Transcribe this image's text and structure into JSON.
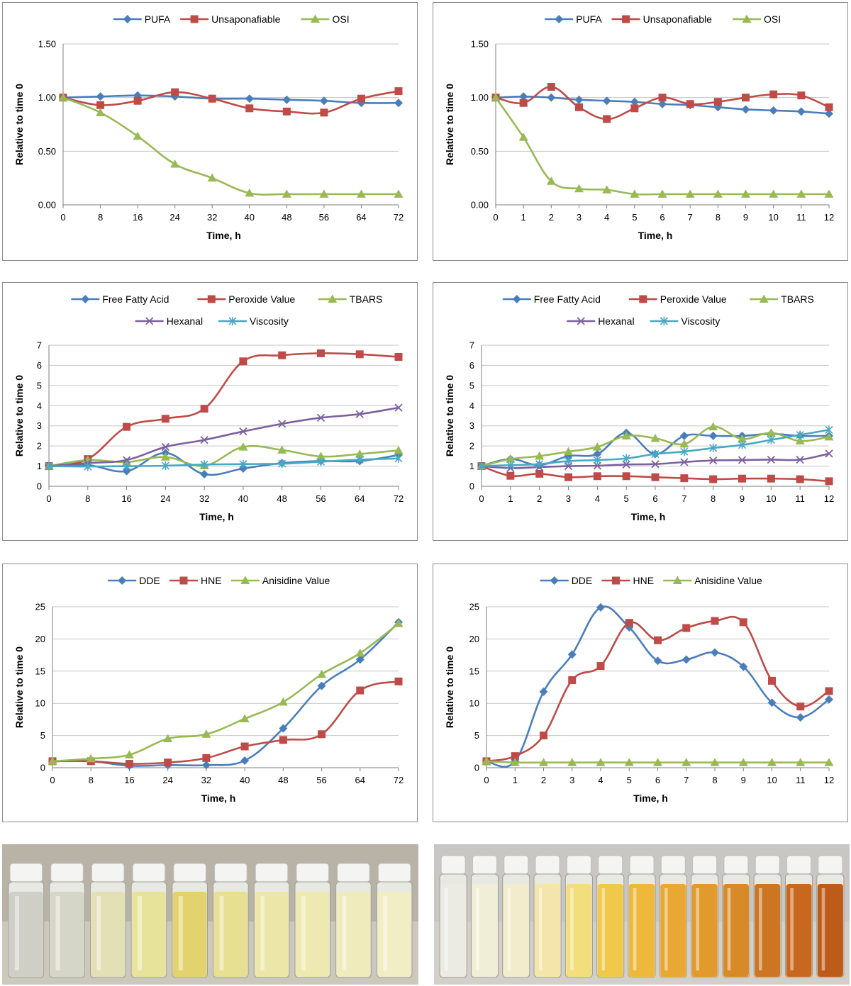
{
  "colors": {
    "blue": "#4a7ebb",
    "red": "#be4b48",
    "green": "#98b954",
    "purple": "#7d60a0",
    "cyan": "#46aac5",
    "grid": "#c6c6c6",
    "axis": "#7f7f7f"
  },
  "chart_data": [
    {
      "type": "line",
      "xlabel": "Time, h",
      "ylabel": "Relative to time 0",
      "x": [
        0,
        8,
        16,
        24,
        32,
        40,
        48,
        56,
        64,
        72
      ],
      "ylim": [
        0,
        1.5
      ],
      "yticks": [
        "0.00",
        "0.50",
        "1.00",
        "1.50"
      ],
      "legend_rows": [
        [
          0,
          1,
          2
        ]
      ],
      "series": [
        {
          "name": "PUFA",
          "color": "blue",
          "marker": "diamond",
          "values": [
            1.0,
            1.01,
            1.02,
            1.01,
            0.99,
            0.99,
            0.98,
            0.97,
            0.95,
            0.95
          ]
        },
        {
          "name": "Unsaponafiable",
          "color": "red",
          "marker": "square",
          "values": [
            1.0,
            0.93,
            0.97,
            1.05,
            0.99,
            0.9,
            0.87,
            0.86,
            0.99,
            1.06
          ]
        },
        {
          "name": "OSI",
          "color": "green",
          "marker": "triangle",
          "values": [
            1.0,
            0.86,
            0.64,
            0.38,
            0.25,
            0.11,
            0.1,
            0.1,
            0.1,
            0.1
          ]
        }
      ]
    },
    {
      "type": "line",
      "xlabel": "Time, h",
      "ylabel": "Relative to time 0",
      "x": [
        0,
        1,
        2,
        3,
        4,
        5,
        6,
        7,
        8,
        9,
        10,
        11,
        12
      ],
      "ylim": [
        0,
        1.5
      ],
      "yticks": [
        "0.00",
        "0.50",
        "1.00",
        "1.50"
      ],
      "legend_rows": [
        [
          0,
          1,
          2
        ]
      ],
      "series": [
        {
          "name": "PUFA",
          "color": "blue",
          "marker": "diamond",
          "values": [
            1.0,
            1.01,
            1.0,
            0.98,
            0.97,
            0.96,
            0.94,
            0.93,
            0.91,
            0.89,
            0.88,
            0.87,
            0.85
          ]
        },
        {
          "name": "Unsaponafiable",
          "color": "red",
          "marker": "square",
          "values": [
            1.0,
            0.95,
            1.1,
            0.91,
            0.8,
            0.9,
            1.0,
            0.94,
            0.96,
            1.0,
            1.03,
            1.02,
            0.91
          ]
        },
        {
          "name": "OSI",
          "color": "green",
          "marker": "triangle",
          "values": [
            1.0,
            0.63,
            0.22,
            0.15,
            0.14,
            0.1,
            0.1,
            0.1,
            0.1,
            0.1,
            0.1,
            0.1,
            0.1
          ]
        }
      ]
    },
    {
      "type": "line",
      "xlabel": "Time, h",
      "ylabel": "Relative to time 0",
      "x": [
        0,
        8,
        16,
        24,
        32,
        40,
        48,
        56,
        64,
        72
      ],
      "ylim": [
        0,
        7
      ],
      "yticks": [
        "0",
        "1",
        "2",
        "3",
        "4",
        "5",
        "6",
        "7"
      ],
      "legend_rows": [
        [
          0,
          1,
          2
        ],
        [
          3,
          4
        ]
      ],
      "series": [
        {
          "name": "Free Fatty Acid",
          "color": "blue",
          "marker": "diamond",
          "values": [
            1.0,
            1.05,
            0.75,
            1.65,
            0.6,
            0.88,
            1.15,
            1.25,
            1.25,
            1.55
          ]
        },
        {
          "name": "Peroxide Value",
          "color": "red",
          "marker": "square",
          "values": [
            1.0,
            1.35,
            2.95,
            3.35,
            3.85,
            6.2,
            6.5,
            6.6,
            6.55,
            6.42
          ]
        },
        {
          "name": "TBARS",
          "color": "green",
          "marker": "triangle",
          "values": [
            1.0,
            1.3,
            1.2,
            1.45,
            1.02,
            1.95,
            1.8,
            1.48,
            1.6,
            1.78
          ]
        },
        {
          "name": "Hexanal",
          "color": "purple",
          "marker": "x",
          "values": [
            1.0,
            1.15,
            1.3,
            1.95,
            2.3,
            2.72,
            3.1,
            3.4,
            3.58,
            3.9
          ]
        },
        {
          "name": "Viscosity",
          "color": "cyan",
          "marker": "star",
          "values": [
            1.0,
            0.98,
            1.0,
            1.02,
            1.08,
            1.1,
            1.12,
            1.22,
            1.32,
            1.38
          ]
        }
      ]
    },
    {
      "type": "line",
      "xlabel": "Time, h",
      "ylabel": "Relative to time 0",
      "x": [
        0,
        1,
        2,
        3,
        4,
        5,
        6,
        7,
        8,
        9,
        10,
        11,
        12
      ],
      "ylim": [
        0,
        7
      ],
      "yticks": [
        "0",
        "1",
        "2",
        "3",
        "4",
        "5",
        "6",
        "7"
      ],
      "legend_rows": [
        [
          0,
          1,
          2
        ],
        [
          3,
          4
        ]
      ],
      "series": [
        {
          "name": "Free Fatty Acid",
          "color": "blue",
          "marker": "diamond",
          "values": [
            1.0,
            1.35,
            1.05,
            1.5,
            1.6,
            2.65,
            1.6,
            2.5,
            2.5,
            2.5,
            2.6,
            2.5,
            2.5
          ]
        },
        {
          "name": "Peroxide Value",
          "color": "red",
          "marker": "square",
          "values": [
            1.0,
            0.52,
            0.62,
            0.45,
            0.5,
            0.5,
            0.45,
            0.4,
            0.35,
            0.38,
            0.38,
            0.35,
            0.25
          ]
        },
        {
          "name": "TBARS",
          "color": "green",
          "marker": "triangle",
          "values": [
            1.0,
            1.35,
            1.5,
            1.72,
            1.95,
            2.5,
            2.38,
            2.1,
            2.95,
            2.35,
            2.65,
            2.25,
            2.45
          ]
        },
        {
          "name": "Hexanal",
          "color": "purple",
          "marker": "x",
          "values": [
            1.0,
            0.9,
            0.95,
            1.0,
            1.02,
            1.08,
            1.1,
            1.2,
            1.28,
            1.3,
            1.32,
            1.32,
            1.62
          ]
        },
        {
          "name": "Viscosity",
          "color": "cyan",
          "marker": "star",
          "values": [
            1.0,
            1.05,
            1.1,
            1.25,
            1.3,
            1.38,
            1.6,
            1.72,
            1.9,
            2.05,
            2.3,
            2.55,
            2.8
          ]
        }
      ]
    },
    {
      "type": "line",
      "xlabel": "Time, h",
      "ylabel": "Relative to time 0",
      "x": [
        0,
        8,
        16,
        24,
        32,
        40,
        48,
        56,
        64,
        72
      ],
      "ylim": [
        0,
        25
      ],
      "yticks": [
        "0",
        "5",
        "10",
        "15",
        "20",
        "25"
      ],
      "legend_rows": [
        [
          0,
          1,
          2
        ]
      ],
      "series": [
        {
          "name": "DDE",
          "color": "blue",
          "marker": "diamond",
          "values": [
            1.0,
            1.0,
            0.3,
            0.4,
            0.4,
            1.1,
            6.1,
            12.7,
            16.8,
            22.6
          ]
        },
        {
          "name": "HNE",
          "color": "red",
          "marker": "square",
          "values": [
            1.0,
            1.0,
            0.6,
            0.8,
            1.5,
            3.3,
            4.3,
            5.2,
            12.0,
            13.4
          ]
        },
        {
          "name": "Anisidine Value",
          "color": "green",
          "marker": "triangle",
          "values": [
            1.0,
            1.4,
            2.0,
            4.5,
            5.2,
            7.6,
            10.2,
            14.5,
            17.8,
            22.4
          ]
        }
      ]
    },
    {
      "type": "line",
      "xlabel": "Time, h",
      "ylabel": "Relative to time 0",
      "x": [
        0,
        1,
        2,
        3,
        4,
        5,
        6,
        7,
        8,
        9,
        10,
        11,
        12
      ],
      "ylim": [
        0,
        25
      ],
      "yticks": [
        "0",
        "5",
        "10",
        "15",
        "20",
        "25"
      ],
      "legend_rows": [
        [
          0,
          1,
          2
        ]
      ],
      "series": [
        {
          "name": "DDE",
          "color": "blue",
          "marker": "diamond",
          "values": [
            1.0,
            1.0,
            11.8,
            17.6,
            24.9,
            21.8,
            16.6,
            16.8,
            17.9,
            15.7,
            10.1,
            7.8,
            10.6
          ]
        },
        {
          "name": "HNE",
          "color": "red",
          "marker": "square",
          "values": [
            1.0,
            1.8,
            5.0,
            13.6,
            15.8,
            22.5,
            19.8,
            21.7,
            22.8,
            22.6,
            13.5,
            9.5,
            11.9
          ]
        },
        {
          "name": "Anisidine Value",
          "color": "green",
          "marker": "triangle",
          "values": [
            1.0,
            0.8,
            0.8,
            0.8,
            0.8,
            0.8,
            0.8,
            0.8,
            0.8,
            0.8,
            0.8,
            0.8,
            0.8
          ]
        }
      ]
    }
  ],
  "photos": [
    {
      "name": "photo-vials-left",
      "vial_colors": [
        "#cfcfc6",
        "#d6d6c8",
        "#e2e0b4",
        "#e8e39a",
        "#e3d36e",
        "#e7df92",
        "#ece6a8",
        "#eee9b0",
        "#efebba",
        "#f1edc4"
      ],
      "background": "#b8b3a6"
    },
    {
      "name": "photo-vials-right",
      "vial_colors": [
        "#ebebe4",
        "#f0eed6",
        "#f2eccb",
        "#f4e6aa",
        "#f3de7d",
        "#f0c94a",
        "#eeb93a",
        "#e9a833",
        "#e29a2c",
        "#d98a28",
        "#cc7623",
        "#c8681f",
        "#bf5b1a"
      ],
      "background": "#c9c7c3"
    }
  ]
}
